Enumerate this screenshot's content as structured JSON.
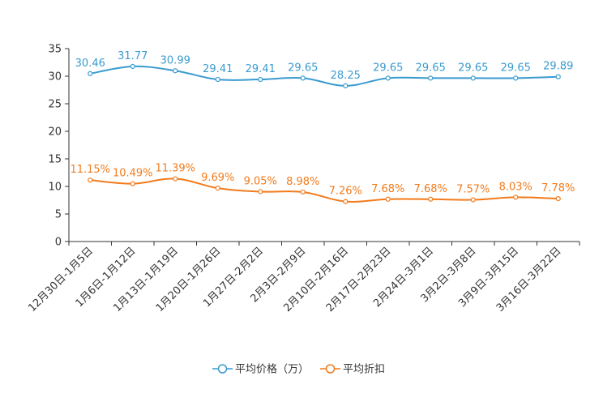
{
  "chart_data": {
    "type": "line",
    "categories": [
      "12月30日-1月5日",
      "1月6日-1月12日",
      "1月13日-1月19日",
      "1月20日-1月26日",
      "1月27日-2月2日",
      "2月3日-2月9日",
      "2月10日-2月16日",
      "2月17日-2月23日",
      "2月24日-3月1日",
      "3月2日-3月8日",
      "3月9日-3月15日",
      "3月16日-3月22日"
    ],
    "series": [
      {
        "name": "平均价格（万）",
        "color": "#3a9bd0",
        "values": [
          30.46,
          31.77,
          30.99,
          29.41,
          29.41,
          29.65,
          28.25,
          29.65,
          29.65,
          29.65,
          29.65,
          29.89
        ],
        "labels": [
          "30.46",
          "31.77",
          "30.99",
          "29.41",
          "29.41",
          "29.65",
          "28.25",
          "29.65",
          "29.65",
          "29.65",
          "29.65",
          "29.89"
        ]
      },
      {
        "name": "平均折扣",
        "color": "#f27b1c",
        "values": [
          11.15,
          10.49,
          11.39,
          9.69,
          9.05,
          8.98,
          7.26,
          7.68,
          7.68,
          7.57,
          8.03,
          7.78
        ],
        "labels": [
          "11.15%",
          "10.49%",
          "11.39%",
          "9.69%",
          "9.05%",
          "8.98%",
          "7.26%",
          "7.68%",
          "7.68%",
          "7.57%",
          "8.03%",
          "7.78%"
        ]
      }
    ],
    "ylim": [
      0,
      35
    ],
    "yticks": [
      0,
      5,
      10,
      15,
      20,
      25,
      30,
      35
    ],
    "title": "",
    "xlabel": "",
    "ylabel": "",
    "legend_position": "bottom-center"
  }
}
